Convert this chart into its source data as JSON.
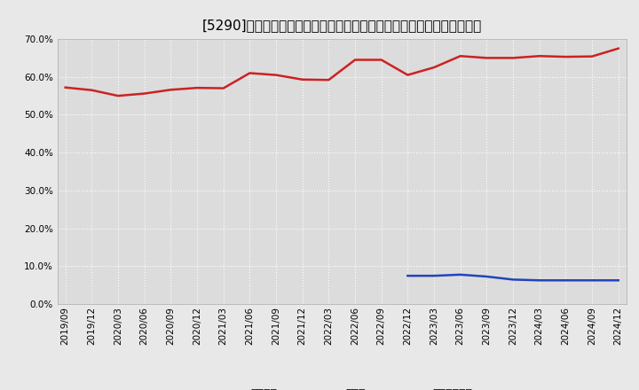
{
  "title": "[5290]　自己資本、のれん、繰延税金資産の総資産に対する比率の推移",
  "x_labels": [
    "2019/09",
    "2019/12",
    "2020/03",
    "2020/06",
    "2020/09",
    "2020/12",
    "2021/03",
    "2021/06",
    "2021/09",
    "2021/12",
    "2022/03",
    "2022/06",
    "2022/09",
    "2022/12",
    "2023/03",
    "2023/06",
    "2023/09",
    "2023/12",
    "2024/03",
    "2024/06",
    "2024/09",
    "2024/12"
  ],
  "jikoshihon": [
    57.2,
    56.5,
    55.0,
    55.6,
    56.6,
    57.1,
    57.0,
    61.0,
    60.5,
    59.3,
    59.2,
    64.5,
    64.5,
    60.5,
    62.5,
    65.5,
    65.0,
    65.0,
    65.5,
    65.3,
    65.4,
    67.5
  ],
  "noren": [
    null,
    null,
    null,
    null,
    null,
    null,
    null,
    null,
    null,
    null,
    null,
    null,
    null,
    7.5,
    7.5,
    7.8,
    7.3,
    6.5,
    6.3,
    6.3,
    6.3,
    6.3
  ],
  "kurinobe": [
    null,
    null,
    null,
    null,
    null,
    null,
    null,
    null,
    null,
    null,
    null,
    null,
    null,
    null,
    null,
    null,
    null,
    null,
    null,
    null,
    null,
    null
  ],
  "ylim": [
    0.0,
    70.0
  ],
  "yticks": [
    0.0,
    10.0,
    20.0,
    30.0,
    40.0,
    50.0,
    60.0,
    70.0
  ],
  "jikoshihon_color": "#cc2222",
  "noren_color": "#2244bb",
  "kurinobe_color": "#228822",
  "legend_labels": [
    "自己資本",
    "のれん",
    "繰延税金資産"
  ],
  "background_color": "#e8e8e8",
  "plot_bg_color": "#dcdcdc",
  "grid_color": "#ffffff",
  "title_fontsize": 11,
  "axis_fontsize": 7.5,
  "legend_fontsize": 9
}
